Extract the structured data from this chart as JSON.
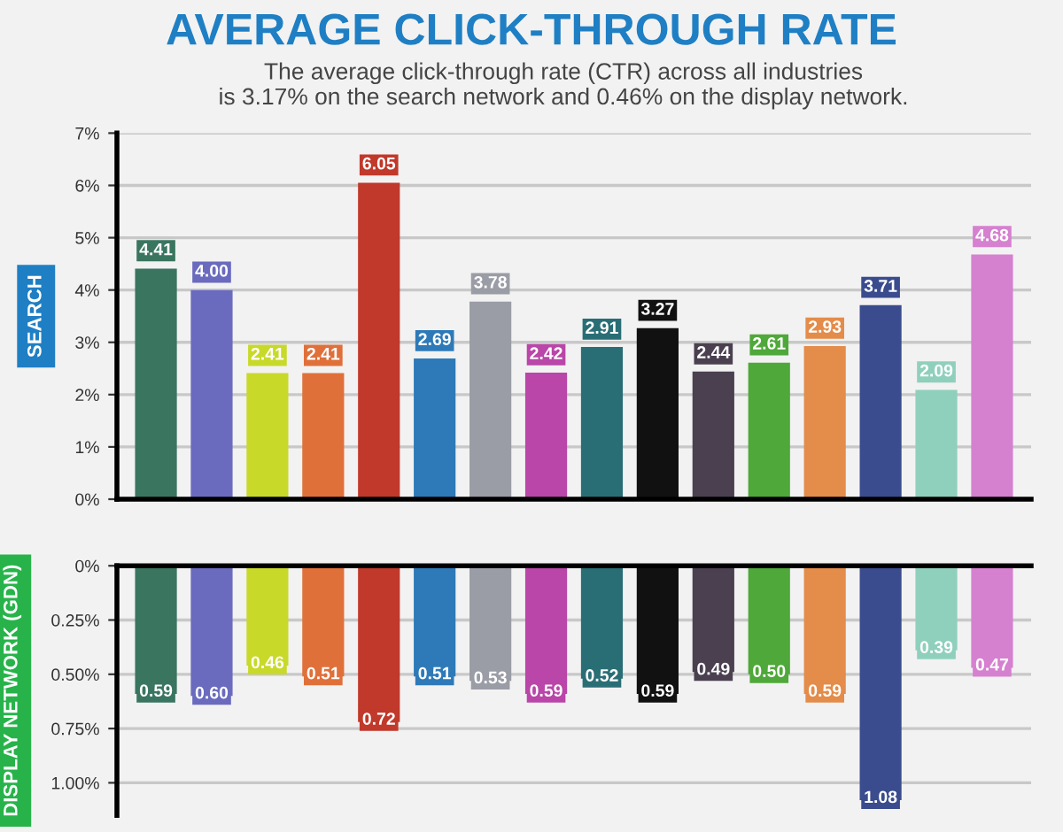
{
  "chart_data": [
    {
      "type": "bar",
      "title": "AVERAGE CLICK-THROUGH RATE",
      "subtitle": "The average click-through rate (CTR) across all industries\nis 3.17% on the search network and 0.46% on the display network.",
      "ylabel": "SEARCH",
      "categories": [
        null,
        null,
        null,
        null,
        null,
        null,
        null,
        null,
        null,
        null,
        null,
        null,
        null,
        null,
        null,
        null
      ],
      "values": [
        4.41,
        4.0,
        2.41,
        2.41,
        6.05,
        2.69,
        3.78,
        2.42,
        2.91,
        3.27,
        2.44,
        2.61,
        2.93,
        3.71,
        2.09,
        4.68
      ],
      "value_labels": [
        "4.41",
        "4.00",
        "2.41",
        "2.41",
        "6.05",
        "2.69",
        "3.78",
        "2.42",
        "2.91",
        "3.27",
        "2.44",
        "2.61",
        "2.93",
        "3.71",
        "2.09",
        "4.68"
      ],
      "colors": [
        "#3a7560",
        "#6a6bbf",
        "#c8d92a",
        "#e0703a",
        "#c0392b",
        "#2e7ab8",
        "#9a9ca6",
        "#b946a8",
        "#2a6e75",
        "#111111",
        "#4a4050",
        "#4fa83a",
        "#e48c4a",
        "#3a4c8e",
        "#8fd0bc",
        "#d680d0"
      ],
      "ylim": [
        0,
        7
      ],
      "yticks": [
        {
          "value": 0,
          "label": "0%"
        },
        {
          "value": 1,
          "label": "1%"
        },
        {
          "value": 2,
          "label": "2%"
        },
        {
          "value": 3,
          "label": "3%"
        },
        {
          "value": 4,
          "label": "4%"
        },
        {
          "value": 5,
          "label": "5%"
        },
        {
          "value": 6,
          "label": "6%"
        },
        {
          "value": 7,
          "label": "7%"
        }
      ],
      "grid": "y",
      "tick_labels": "y"
    },
    {
      "type": "bar",
      "ylabel": "DISPLAY NETWORK (GDN)",
      "categories": [
        null,
        null,
        null,
        null,
        null,
        null,
        null,
        null,
        null,
        null,
        null,
        null,
        null,
        null,
        null,
        null
      ],
      "values": [
        0.59,
        0.6,
        0.46,
        0.51,
        0.72,
        0.51,
        0.53,
        0.59,
        0.52,
        0.59,
        0.49,
        0.5,
        0.59,
        1.08,
        0.39,
        0.47
      ],
      "value_labels": [
        "0.59",
        "0.60",
        "0.46",
        "0.51",
        "0.72",
        "0.51",
        "0.53",
        "0.59",
        "0.52",
        "0.59",
        "0.49",
        "0.50",
        "0.59",
        "1.08",
        "0.39",
        "0.47"
      ],
      "colors": [
        "#3a7560",
        "#6a6bbf",
        "#c8d92a",
        "#e0703a",
        "#c0392b",
        "#2e7ab8",
        "#9a9ca6",
        "#b946a8",
        "#2a6e75",
        "#111111",
        "#4a4050",
        "#4fa83a",
        "#e48c4a",
        "#3a4c8e",
        "#8fd0bc",
        "#d680d0"
      ],
      "ylim": [
        1.15,
        0
      ],
      "yticks": [
        {
          "value": 0,
          "label": "0%"
        },
        {
          "value": 0.25,
          "label": "0.25%"
        },
        {
          "value": 0.5,
          "label": "0.50%"
        },
        {
          "value": 0.75,
          "label": "0.75%"
        },
        {
          "value": 1.0,
          "label": "1.00%"
        }
      ],
      "grid": "y",
      "tick_labels": "y"
    }
  ]
}
